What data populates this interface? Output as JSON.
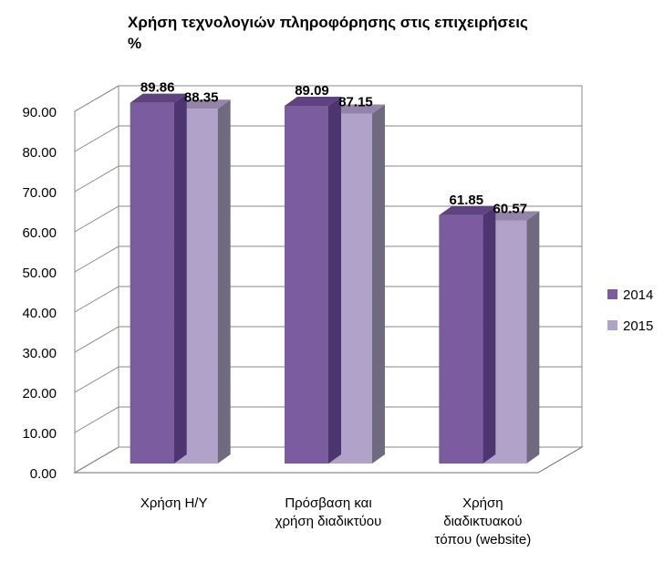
{
  "chart_data": {
    "type": "bar",
    "title": "Χρήση τεχνολογιών πληροφόρησης στις επιχειρήσεις",
    "subtitle": "%",
    "categories": [
      [
        "Χρήση Η/Υ"
      ],
      [
        "Πρόσβαση και",
        "χρήση διαδικτύου"
      ],
      [
        "Χρήση",
        "διαδικτυακού",
        "τόπου (website)"
      ]
    ],
    "series": [
      {
        "name": "2014",
        "values": [
          89.86,
          89.09,
          61.85
        ],
        "labels": [
          "89.86",
          "89.09",
          "61.85"
        ]
      },
      {
        "name": "2015",
        "values": [
          88.35,
          87.15,
          60.57
        ],
        "labels": [
          "88.35",
          "87.15",
          "60.57"
        ]
      }
    ],
    "yticks": [
      "0.00",
      "10.00",
      "20.00",
      "30.00",
      "40.00",
      "50.00",
      "60.00",
      "70.00",
      "80.00",
      "90.00"
    ],
    "ylim": [
      0,
      90
    ],
    "grid": true,
    "legend_position": "right",
    "three_d": true,
    "colors": {
      "2014": {
        "front": "#7b5c9e",
        "top": "#5e4380",
        "side": "#4d3570"
      },
      "2015": {
        "front": "#b0a2c8",
        "top": "#9484ac",
        "side": "#6f6a7e"
      }
    }
  }
}
